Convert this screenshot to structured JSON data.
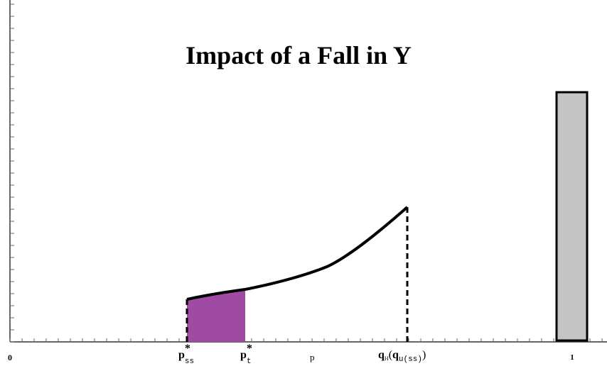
{
  "title": "Impact of a Fall in Y",
  "axis_labels": {
    "origin": "0",
    "p_ss": {
      "base": "p",
      "sup": "*",
      "sub": "ss"
    },
    "p_t": {
      "base": "p",
      "sup": "*",
      "sub": "t"
    },
    "p": "p",
    "q": {
      "base": "q",
      "sub": "H",
      "open": "(",
      "inner_base": "q",
      "inner_sub": "u(ss)",
      "close": ")"
    },
    "one": "1"
  }
}
